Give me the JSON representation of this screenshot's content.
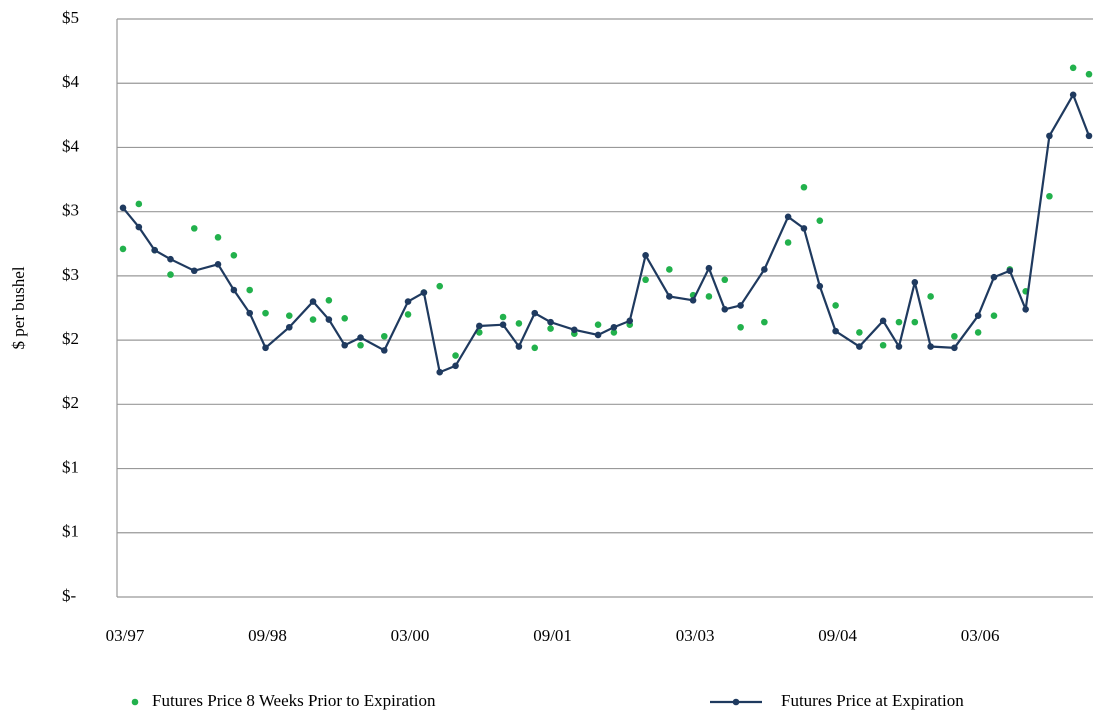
{
  "chart_data": {
    "type": "line",
    "y_label": "$ per bushel",
    "x": [
      "03/97",
      "05/97",
      "07/97",
      "09/97",
      "12/97",
      "03/98",
      "05/98",
      "07/98",
      "09/98",
      "12/98",
      "03/99",
      "05/99",
      "07/99",
      "09/99",
      "12/99",
      "03/00",
      "05/00",
      "07/00",
      "09/00",
      "12/00",
      "03/01",
      "05/01",
      "07/01",
      "09/01",
      "12/01",
      "03/02",
      "05/02",
      "07/02",
      "09/02",
      "12/02",
      "03/03",
      "05/03",
      "07/03",
      "09/03",
      "12/03",
      "03/04",
      "05/04",
      "07/04",
      "09/04",
      "12/04",
      "03/05",
      "05/05",
      "07/05",
      "09/05",
      "12/05",
      "03/06",
      "05/06",
      "07/06",
      "09/06",
      "12/06",
      "03/07",
      "05/07"
    ],
    "xlim": [
      "03/97",
      "05/07"
    ],
    "xticks": [
      "03/97",
      "09/98",
      "03/00",
      "09/01",
      "03/03",
      "09/04",
      "03/06"
    ],
    "ylim": [
      0,
      4.5
    ],
    "yticks": [
      {
        "value": 0,
        "label": "$-"
      },
      {
        "value": 0.5,
        "label": "$1"
      },
      {
        "value": 1,
        "label": "$1"
      },
      {
        "value": 1.5,
        "label": "$2"
      },
      {
        "value": 2,
        "label": "$2"
      },
      {
        "value": 2.5,
        "label": "$3"
      },
      {
        "value": 3,
        "label": "$3"
      },
      {
        "value": 3.5,
        "label": "$4"
      },
      {
        "value": 4,
        "label": "$4"
      },
      {
        "value": 4.5,
        "label": "$5"
      }
    ],
    "grid": true,
    "legend": "bottom",
    "series": [
      {
        "name": "Futures Price 8 Weeks Prior to Expiration",
        "color": "#22b14c",
        "mode": "markers",
        "values": [
          2.71,
          3.06,
          2.7,
          2.51,
          2.87,
          2.8,
          2.66,
          2.39,
          2.21,
          2.19,
          2.16,
          2.31,
          2.17,
          1.96,
          2.03,
          2.2,
          2.37,
          2.42,
          1.88,
          2.06,
          2.18,
          2.13,
          1.94,
          2.09,
          2.05,
          2.12,
          2.06,
          2.12,
          2.47,
          2.55,
          2.35,
          2.34,
          2.47,
          2.1,
          2.14,
          2.76,
          3.19,
          2.93,
          2.27,
          2.06,
          1.96,
          2.14,
          2.14,
          2.34,
          2.03,
          2.06,
          2.19,
          2.55,
          2.38,
          3.12,
          4.12,
          4.07
        ]
      },
      {
        "name": "Futures Price at Expiration",
        "color": "#1f3a5f",
        "mode": "lines+markers",
        "values": [
          3.03,
          2.88,
          2.7,
          2.63,
          2.54,
          2.59,
          2.39,
          2.21,
          1.94,
          2.1,
          2.3,
          2.16,
          1.96,
          2.02,
          1.92,
          2.3,
          2.37,
          1.75,
          1.8,
          2.11,
          2.12,
          1.95,
          2.21,
          2.14,
          2.08,
          2.04,
          2.1,
          2.15,
          2.66,
          2.34,
          2.31,
          2.56,
          2.24,
          2.27,
          2.55,
          2.96,
          2.87,
          2.42,
          2.07,
          1.95,
          2.15,
          1.95,
          2.45,
          1.95,
          1.94,
          2.19,
          2.49,
          2.54,
          2.24,
          3.59,
          3.91,
          3.59
        ]
      }
    ]
  }
}
